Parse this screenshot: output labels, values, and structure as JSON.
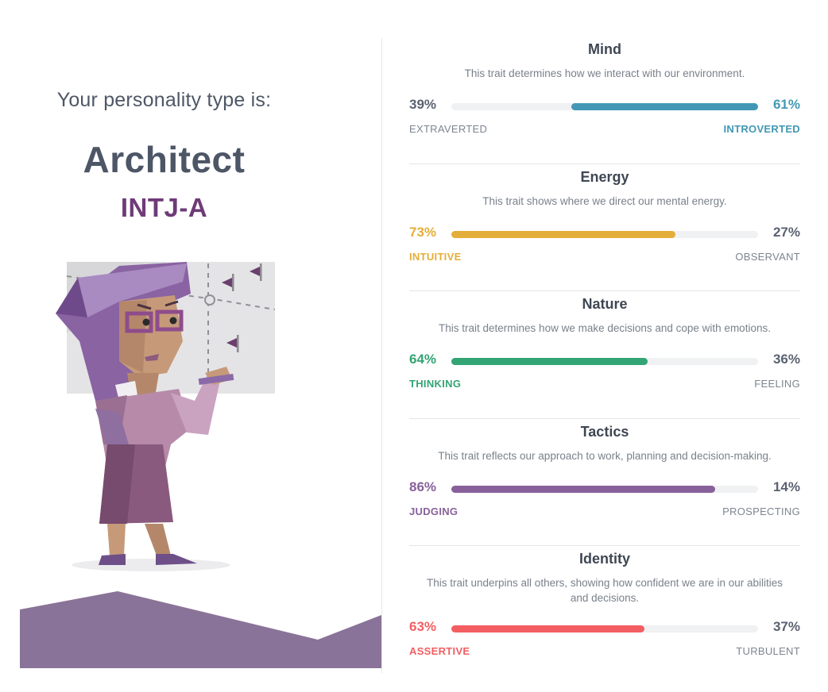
{
  "result": {
    "intro": "Your personality type is:",
    "type_name": "Architect",
    "type_code": "INTJ-A"
  },
  "traits": [
    {
      "title": "Mind",
      "description": "This trait determines how we interact with our environment.",
      "left_label": "EXTRAVERTED",
      "left_pct": "39%",
      "right_label": "INTROVERTED",
      "right_pct": "61%",
      "dominant": "right",
      "value": 61,
      "color": "#4298b4"
    },
    {
      "title": "Energy",
      "description": "This trait shows where we direct our mental energy.",
      "left_label": "INTUITIVE",
      "left_pct": "73%",
      "right_label": "OBSERVANT",
      "right_pct": "27%",
      "dominant": "left",
      "value": 73,
      "color": "#e4ae3a"
    },
    {
      "title": "Nature",
      "description": "This trait determines how we make decisions and cope with emotions.",
      "left_label": "THINKING",
      "left_pct": "64%",
      "right_label": "FEELING",
      "right_pct": "36%",
      "dominant": "left",
      "value": 64,
      "color": "#33a474"
    },
    {
      "title": "Tactics",
      "description": "This trait reflects our approach to work, planning and decision-making.",
      "left_label": "JUDGING",
      "left_pct": "86%",
      "right_label": "PROSPECTING",
      "right_pct": "14%",
      "dominant": "left",
      "value": 86,
      "color": "#88619a"
    },
    {
      "title": "Identity",
      "description": "This trait underpins all others, showing how confident we are in our abilities and decisions.",
      "left_label": "ASSERTIVE",
      "left_pct": "63%",
      "right_label": "TURBULENT",
      "right_pct": "37%",
      "dominant": "left",
      "value": 63,
      "color": "#f25e62"
    }
  ]
}
